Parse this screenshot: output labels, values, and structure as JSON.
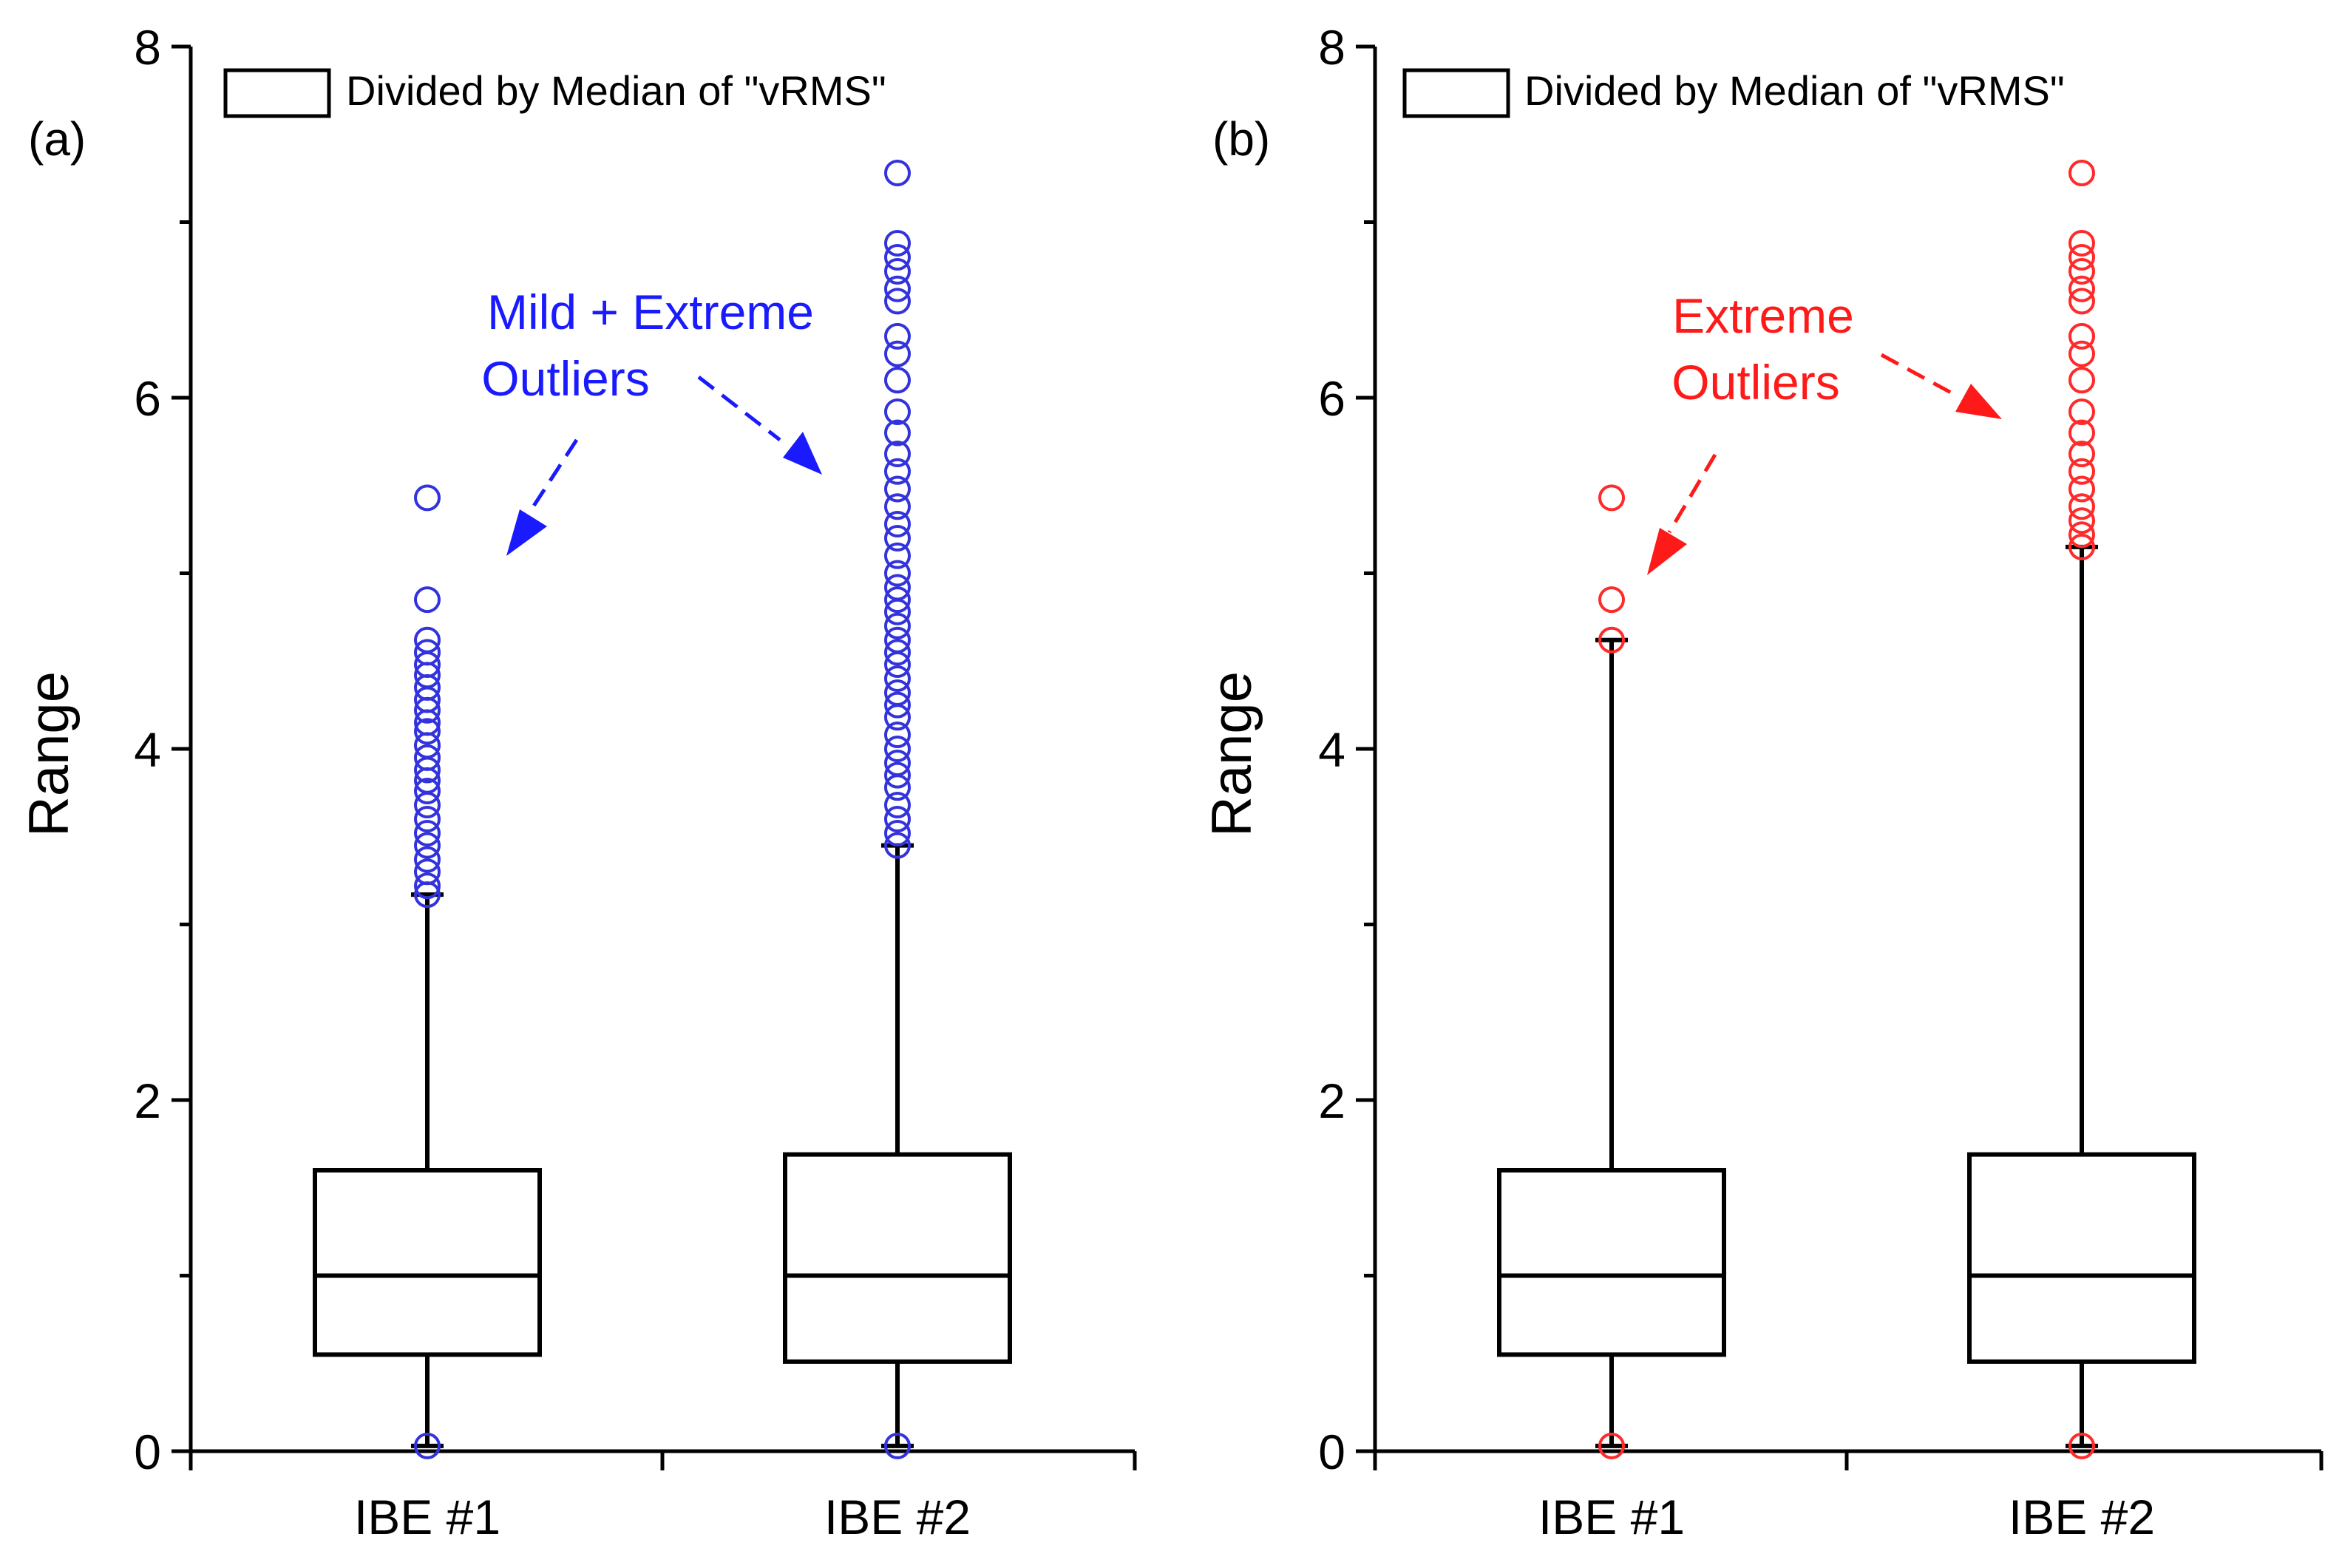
{
  "chart_data": [
    {
      "type": "box",
      "panel_label": "(a)",
      "legend": "Divided by Median of \"vRMS\"",
      "ylabel": "Range",
      "xlabel": "",
      "ylim": [
        0,
        8
      ],
      "yticks": [
        0,
        2,
        4,
        6,
        8
      ],
      "categories": [
        "IBE #1",
        "IBE #2"
      ],
      "outlier_color": "#3333dd",
      "annotation": {
        "lines": [
          "Mild + Extreme",
          "Outliers"
        ],
        "color": "#1a1aff"
      },
      "boxes": [
        {
          "name": "IBE #1",
          "q1": 0.55,
          "median": 1.0,
          "q3": 1.6,
          "whisker_low": 0.03,
          "whisker_high": 3.17,
          "outliers": [
            0.03,
            3.17,
            3.22,
            3.3,
            3.37,
            3.45,
            3.52,
            3.6,
            3.68,
            3.76,
            3.82,
            3.88,
            3.95,
            4.02,
            4.1,
            4.15,
            4.22,
            4.28,
            4.35,
            4.42,
            4.48,
            4.55,
            4.62,
            4.85,
            5.43
          ]
        },
        {
          "name": "IBE #2",
          "q1": 0.51,
          "median": 1.0,
          "q3": 1.69,
          "whisker_low": 0.03,
          "whisker_high": 3.45,
          "outliers": [
            0.03,
            3.45,
            3.52,
            3.6,
            3.68,
            3.78,
            3.85,
            3.92,
            4.0,
            4.08,
            4.18,
            4.25,
            4.32,
            4.4,
            4.48,
            4.55,
            4.62,
            4.7,
            4.78,
            4.85,
            4.92,
            5.0,
            5.1,
            5.2,
            5.28,
            5.38,
            5.48,
            5.58,
            5.68,
            5.8,
            5.92,
            6.1,
            6.25,
            6.35,
            6.55,
            6.62,
            6.72,
            6.8,
            6.88,
            7.28
          ]
        }
      ]
    },
    {
      "type": "box",
      "panel_label": "(b)",
      "legend": "Divided by Median of \"vRMS\"",
      "ylabel": "Range",
      "xlabel": "",
      "ylim": [
        0,
        8
      ],
      "yticks": [
        0,
        2,
        4,
        6,
        8
      ],
      "categories": [
        "IBE #1",
        "IBE #2"
      ],
      "outlier_color": "#ff2a2a",
      "annotation": {
        "lines": [
          "Extreme",
          "Outliers"
        ],
        "color": "#ff1a1a"
      },
      "boxes": [
        {
          "name": "IBE #1",
          "q1": 0.55,
          "median": 1.0,
          "q3": 1.6,
          "whisker_low": 0.03,
          "whisker_high": 4.62,
          "outliers": [
            0.03,
            4.62,
            4.85,
            5.43
          ]
        },
        {
          "name": "IBE #2",
          "q1": 0.51,
          "median": 1.0,
          "q3": 1.69,
          "whisker_low": 0.03,
          "whisker_high": 5.15,
          "outliers": [
            0.03,
            5.15,
            5.22,
            5.3,
            5.38,
            5.48,
            5.58,
            5.68,
            5.8,
            5.92,
            6.1,
            6.25,
            6.35,
            6.55,
            6.62,
            6.72,
            6.8,
            6.88,
            7.28
          ]
        }
      ]
    }
  ]
}
